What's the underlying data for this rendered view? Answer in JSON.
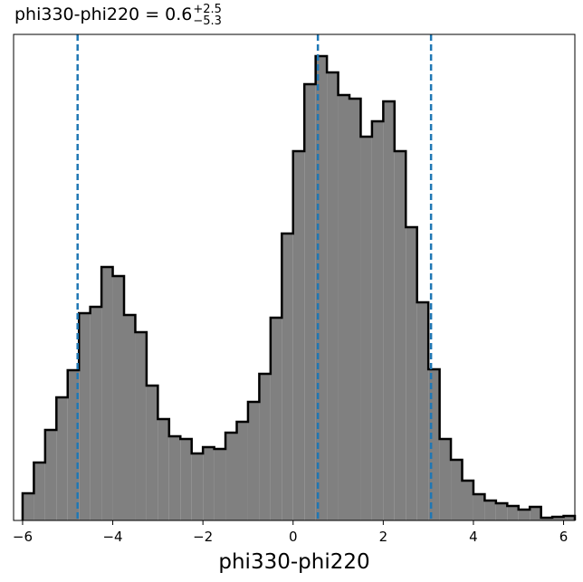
{
  "chart_data": {
    "type": "histogram",
    "title": "phi330-phi220 = 0.6",
    "title_plus": "+2.5",
    "title_minus": "−5.3",
    "x_label": "phi330-phi220",
    "bins": [
      -6.0,
      -5.75,
      -5.5,
      -5.25,
      -5.0,
      -4.75,
      -4.5,
      -4.25,
      -4.0,
      -3.75,
      -3.5,
      -3.25,
      -3.0,
      -2.75,
      -2.5,
      -2.25,
      -2.0,
      -1.75,
      -1.5,
      -1.25,
      -1.0,
      -0.75,
      -0.5,
      -0.25,
      0.0,
      0.25,
      0.5,
      0.75,
      1.0,
      1.25,
      1.5,
      1.75,
      2.0,
      2.25,
      2.5,
      2.75,
      3.0,
      3.25,
      3.5,
      3.75,
      4.0,
      4.25,
      4.5,
      4.75,
      5.0,
      5.25,
      5.5,
      5.75,
      6.0,
      6.25
    ],
    "values": [
      30,
      64,
      100,
      136,
      166,
      229,
      236,
      280,
      270,
      227,
      208,
      149,
      112,
      93,
      90,
      74,
      81,
      79,
      97,
      109,
      131,
      162,
      224,
      317,
      408,
      482,
      513,
      495,
      470,
      466,
      424,
      441,
      463,
      408,
      324,
      241,
      167,
      90,
      67,
      44,
      29,
      22,
      19,
      16,
      12,
      15,
      3,
      4,
      5
    ],
    "color": "#808080",
    "edge_color": "#000000",
    "quantiles": [
      -4.78,
      0.55,
      3.06
    ],
    "quantile_color": "#1f77b4",
    "xlim": [
      -6.2,
      6.25
    ],
    "ylim": [
      0,
      537
    ],
    "xticks": [
      {
        "value": -6,
        "label": "−6"
      },
      {
        "value": -4,
        "label": "−4"
      },
      {
        "value": -2,
        "label": "−2"
      },
      0,
      2,
      4,
      6
    ]
  }
}
